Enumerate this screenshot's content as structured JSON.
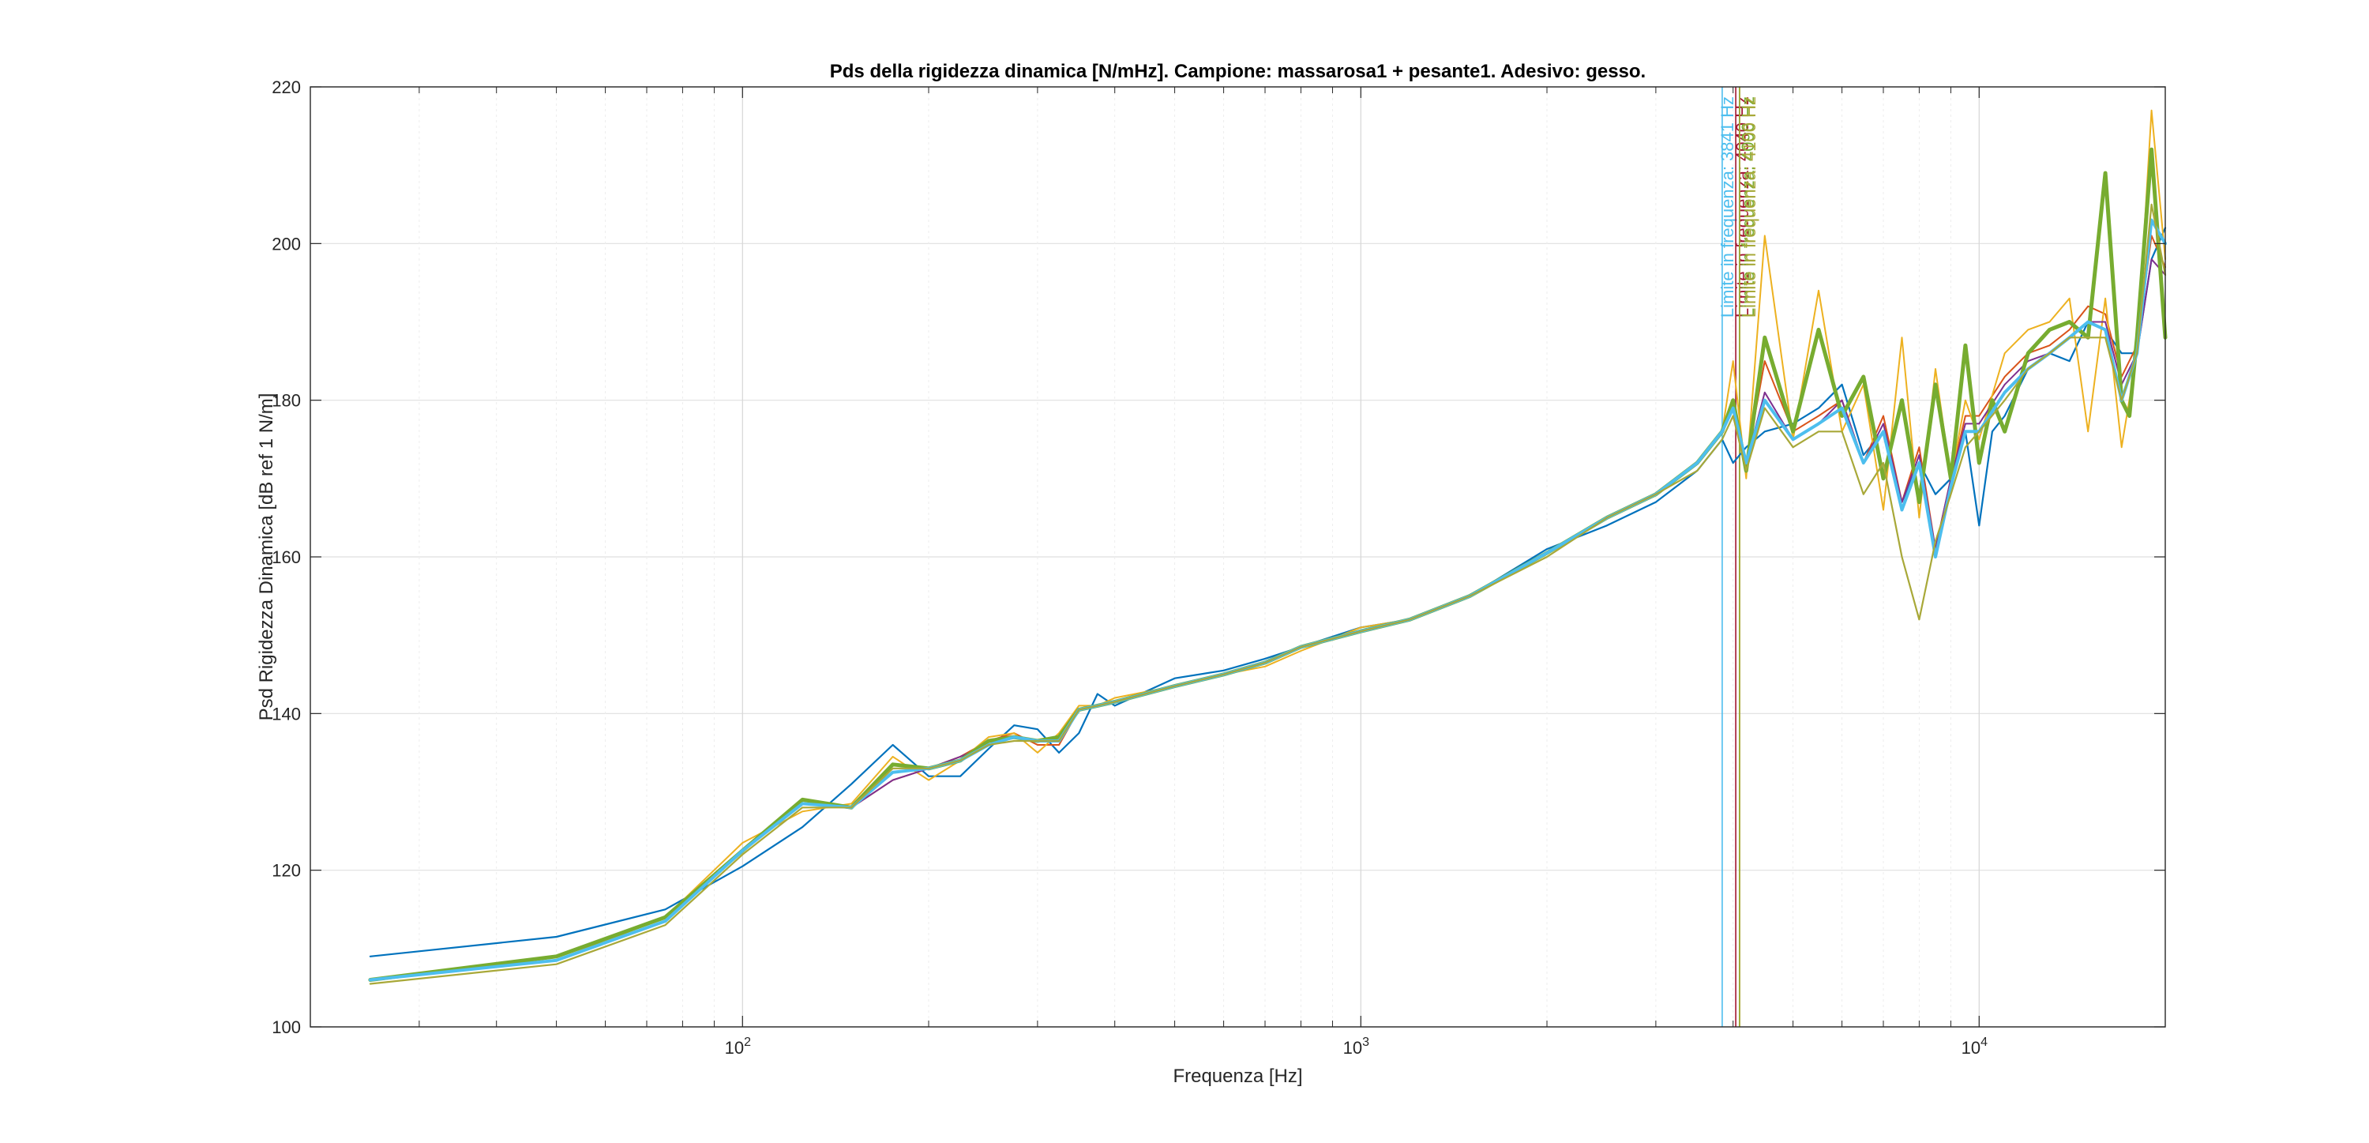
{
  "chart_data": {
    "type": "line",
    "title": "Pds della rigidezza dinamica [N/mHz]. Campione: massarosa1 + pesante1. Adesivo: gesso.",
    "xlabel": "Frequenza [Hz]",
    "ylabel": "Psd Rigidezza Dinamica [dB ref 1 N/m]",
    "x_scale": "log",
    "xlim": [
      20,
      20000
    ],
    "ylim": [
      100,
      220
    ],
    "x_ticks": [
      {
        "value": 100,
        "base": "10",
        "exp": "2"
      },
      {
        "value": 1000,
        "base": "10",
        "exp": "3"
      },
      {
        "value": 10000,
        "base": "10",
        "exp": "4"
      }
    ],
    "y_ticks": [
      100,
      120,
      140,
      160,
      180,
      200,
      220
    ],
    "y_tick_labels": [
      "100",
      "120",
      "140",
      "160",
      "180",
      "200",
      "220"
    ],
    "grid": true,
    "vertical_lines": [
      {
        "x": 3841,
        "label": "Limite in frequenza: 3841 Hz",
        "color": "#4DBEEE"
      },
      {
        "x": 4040,
        "label": "Limite in frequenza: 4040 Hz",
        "color": "#A2142F"
      },
      {
        "x": 4096,
        "label": "Limite in frequenza: 4096 Hz",
        "color": "#77AC30"
      },
      {
        "x": 4100,
        "label": "Limite in frequenza: 4100 Hz",
        "color": "#A8A838"
      }
    ],
    "series": [
      {
        "color": "#0072BD",
        "width": 2.2,
        "x": [
          25,
          50,
          75,
          100,
          125,
          150,
          175,
          200,
          225,
          250,
          275,
          300,
          325,
          350,
          375,
          400,
          500,
          600,
          700,
          800,
          1000,
          1200,
          1500,
          2000,
          2500,
          3000,
          3500,
          3841,
          4000,
          4200,
          4500,
          5000,
          5500,
          6000,
          6500,
          7000,
          7500,
          8000,
          8500,
          9000,
          9500,
          10000,
          10500,
          11000,
          12000,
          13000,
          14000,
          15000,
          16000,
          17000,
          18000,
          19000,
          20000
        ],
        "y": [
          109,
          111.5,
          115,
          120.5,
          125.5,
          131,
          136,
          132,
          132,
          135.5,
          138.5,
          138,
          135,
          137.5,
          142.5,
          141,
          144.5,
          145.5,
          147,
          148.5,
          151,
          152,
          155,
          161,
          164,
          167,
          171,
          175,
          172,
          174,
          176,
          177,
          179,
          182,
          173,
          176,
          167,
          172,
          168,
          170,
          176,
          164,
          176,
          178,
          184,
          186,
          185,
          190,
          189,
          186,
          186,
          198,
          202
        ]
      },
      {
        "color": "#D95319",
        "width": 2.0,
        "x": [
          25,
          50,
          75,
          100,
          125,
          150,
          175,
          200,
          225,
          250,
          275,
          300,
          325,
          350,
          375,
          400,
          500,
          600,
          700,
          800,
          1000,
          1200,
          1500,
          2000,
          2500,
          3000,
          3500,
          3841,
          4000,
          4200,
          4500,
          5000,
          5500,
          6000,
          6500,
          7000,
          7500,
          8000,
          8500,
          9000,
          9500,
          10000,
          11000,
          12000,
          13000,
          14000,
          15000,
          16000,
          17000,
          18000,
          19000,
          20000
        ],
        "y": [
          106,
          108.5,
          113.5,
          122.5,
          128.5,
          128,
          131.5,
          133,
          134.5,
          136.5,
          137.5,
          136,
          136,
          140.5,
          141,
          141.5,
          143.5,
          145,
          146.5,
          148.5,
          150.5,
          152,
          155,
          160.5,
          165,
          168,
          172,
          176,
          180,
          172,
          185,
          176,
          178,
          180,
          172,
          178,
          167,
          174,
          161,
          170,
          178,
          178,
          183,
          186,
          187,
          189,
          192,
          191,
          183,
          187,
          201,
          197
        ]
      },
      {
        "color": "#EDB120",
        "width": 2.0,
        "x": [
          25,
          50,
          75,
          100,
          125,
          150,
          175,
          200,
          225,
          250,
          275,
          300,
          325,
          350,
          375,
          400,
          500,
          600,
          700,
          800,
          1000,
          1200,
          1500,
          2000,
          2500,
          3000,
          3500,
          3841,
          4000,
          4200,
          4500,
          5000,
          5500,
          6000,
          6500,
          7000,
          7500,
          8000,
          8500,
          9000,
          9500,
          10000,
          11000,
          12000,
          13000,
          14000,
          15000,
          16000,
          17000,
          18000,
          19000,
          20000
        ],
        "y": [
          106,
          108.5,
          114,
          123.5,
          127.5,
          128.5,
          134.5,
          131.5,
          134,
          137,
          137.5,
          135,
          137.5,
          141,
          141,
          142,
          143.5,
          145,
          146,
          148,
          151,
          152,
          155,
          160.5,
          165,
          168,
          172,
          176,
          185,
          170,
          201,
          175,
          194,
          176,
          182,
          166,
          188,
          165,
          184,
          170,
          180,
          175,
          186,
          189,
          190,
          193,
          176,
          193,
          174,
          186,
          217,
          198
        ]
      },
      {
        "color": "#7E2F8E",
        "width": 2.0,
        "x": [
          25,
          50,
          75,
          100,
          125,
          150,
          175,
          200,
          225,
          250,
          275,
          300,
          325,
          350,
          375,
          400,
          500,
          600,
          700,
          800,
          1000,
          1200,
          1500,
          2000,
          2500,
          3000,
          3500,
          3841,
          4000,
          4200,
          4500,
          5000,
          5500,
          6000,
          6500,
          7000,
          7500,
          8000,
          8500,
          9000,
          9500,
          10000,
          11000,
          12000,
          13000,
          14000,
          15000,
          16000,
          17000,
          18000,
          19000,
          20000
        ],
        "y": [
          106,
          108.5,
          113.5,
          122.5,
          128.5,
          128,
          131.5,
          133,
          134.5,
          136,
          137,
          136.5,
          136.5,
          140.5,
          141,
          141.5,
          143.5,
          145,
          146.5,
          148.5,
          150.5,
          152,
          155,
          160.5,
          165,
          168,
          172,
          176,
          179,
          172,
          181,
          175,
          177,
          180,
          172,
          177,
          167,
          173,
          161,
          170,
          177,
          177,
          182,
          185,
          186,
          188,
          190,
          190,
          182,
          186,
          198,
          196
        ]
      },
      {
        "color": "#77AC30",
        "width": 5.0,
        "x": [
          25,
          50,
          75,
          100,
          125,
          150,
          175,
          200,
          225,
          250,
          275,
          300,
          325,
          350,
          375,
          400,
          500,
          600,
          700,
          800,
          1000,
          1200,
          1500,
          2000,
          2500,
          3000,
          3500,
          3841,
          4000,
          4200,
          4500,
          5000,
          5500,
          6000,
          6500,
          7000,
          7500,
          8000,
          8500,
          9000,
          9500,
          10000,
          10500,
          11000,
          12000,
          13000,
          14000,
          15000,
          16000,
          17000,
          17500,
          18000,
          19000,
          20000
        ],
        "y": [
          106,
          109,
          114,
          122.5,
          129,
          128,
          133.5,
          133,
          134,
          136.5,
          137,
          136.5,
          137,
          140.5,
          141,
          141.5,
          143.5,
          145,
          146.5,
          148.5,
          150.5,
          152,
          155,
          160.5,
          165,
          168,
          172,
          176,
          180,
          171,
          188,
          176,
          189,
          178,
          183,
          170,
          180,
          167,
          182,
          170,
          187,
          172,
          180,
          176,
          186,
          189,
          190,
          188,
          209,
          180,
          178,
          188,
          212,
          188
        ]
      },
      {
        "color": "#4DBEEE",
        "width": 4.0,
        "x": [
          25,
          50,
          75,
          100,
          125,
          150,
          175,
          200,
          225,
          250,
          275,
          300,
          325,
          350,
          375,
          400,
          500,
          600,
          700,
          800,
          1000,
          1200,
          1500,
          2000,
          2500,
          3000,
          3500,
          3841,
          4000,
          4200,
          4500,
          5000,
          5500,
          6000,
          6500,
          7000,
          7500,
          8000,
          8500,
          9000,
          9500,
          10000,
          11000,
          12000,
          13000,
          14000,
          15000,
          16000,
          17000,
          18000,
          19000,
          20000
        ],
        "y": [
          106,
          108.5,
          113.5,
          122.5,
          128.5,
          128,
          132.5,
          133,
          134,
          136,
          137,
          136.5,
          136.5,
          140.5,
          141,
          141.5,
          143.5,
          145,
          146.5,
          148.5,
          150.5,
          152,
          155,
          160.5,
          165,
          168,
          172,
          176,
          179,
          172,
          180,
          175,
          177,
          179,
          172,
          176,
          166,
          172,
          160,
          169,
          176,
          176,
          181,
          184,
          186,
          188,
          190,
          189,
          180,
          186,
          203,
          200
        ]
      },
      {
        "color": "#A8A838",
        "width": 2.2,
        "x": [
          25,
          50,
          75,
          100,
          125,
          150,
          175,
          200,
          225,
          250,
          275,
          300,
          325,
          350,
          375,
          400,
          500,
          600,
          700,
          800,
          1000,
          1200,
          1500,
          2000,
          2500,
          3000,
          3500,
          3841,
          4000,
          4200,
          4500,
          5000,
          5500,
          6000,
          6500,
          7000,
          7500,
          8000,
          8500,
          9000,
          9500,
          10000,
          11000,
          12000,
          13000,
          14000,
          15000,
          16000,
          17000,
          18000,
          19000,
          20000
        ],
        "y": [
          105.5,
          108,
          113,
          122,
          128,
          128,
          133,
          133,
          134,
          136,
          136.5,
          136.5,
          136.5,
          140.5,
          141,
          141.5,
          143.5,
          145,
          146.5,
          148.5,
          150.5,
          152,
          155,
          160,
          165,
          168,
          171,
          175,
          178,
          171,
          179,
          174,
          176,
          176,
          168,
          172,
          160,
          152,
          162,
          168,
          174,
          176,
          180,
          184,
          186,
          188,
          188,
          188,
          180,
          186,
          205,
          196
        ]
      }
    ]
  }
}
